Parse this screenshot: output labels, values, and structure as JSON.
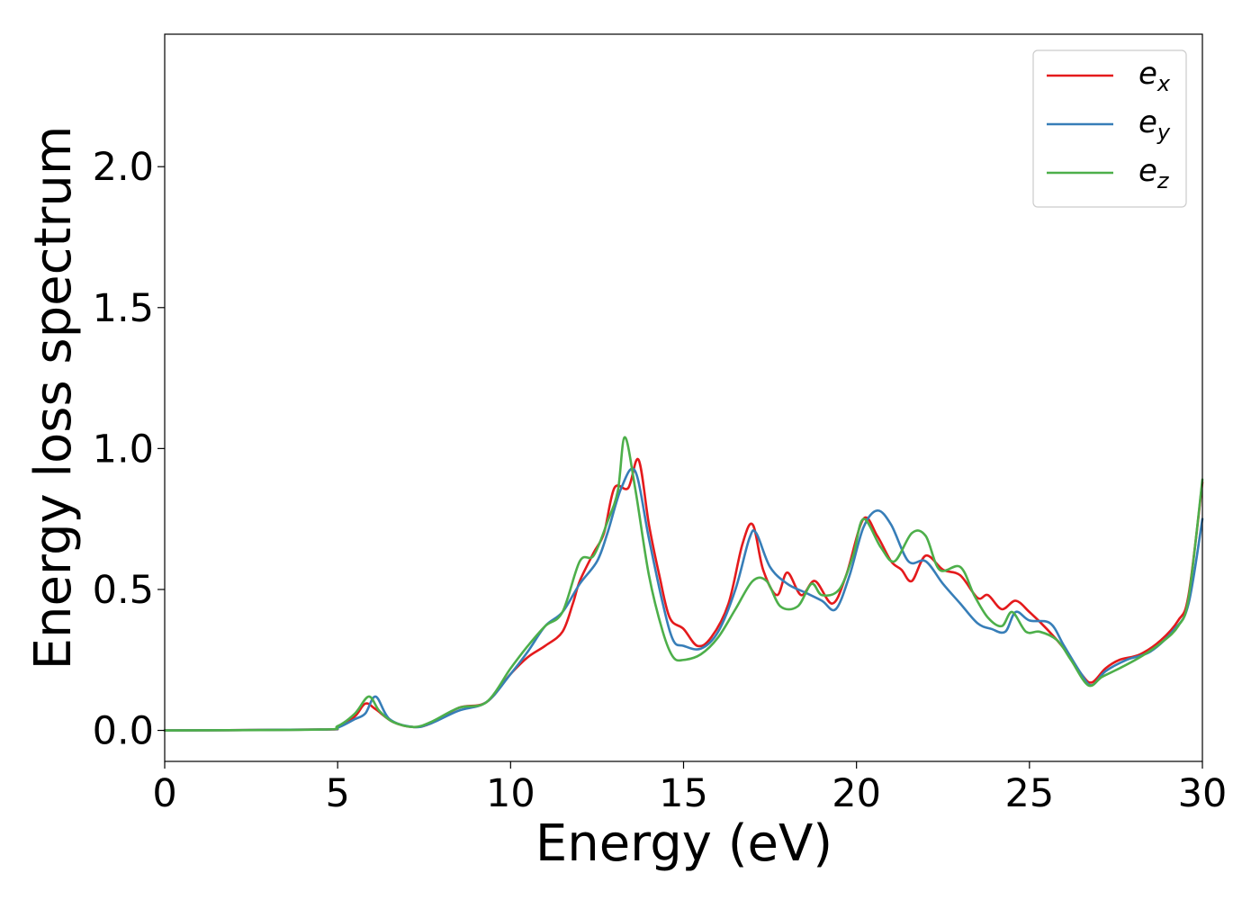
{
  "chart_data": {
    "type": "line",
    "xlabel": "Energy (eV)",
    "ylabel": "Energy loss spectrum",
    "xlim": [
      0,
      30
    ],
    "ylim": [
      -0.11,
      2.47
    ],
    "x_ticks": [
      "0",
      "5",
      "10",
      "15",
      "20",
      "25",
      "30"
    ],
    "y_ticks": [
      "0.0",
      "0.5",
      "1.0",
      "1.5",
      "2.0"
    ],
    "grid": false,
    "legend_position": "top-right",
    "series": [
      {
        "name": "e_x",
        "legend_main": "e",
        "legend_sub": "x",
        "color": "#e41a1c",
        "points": [
          [
            0,
            0
          ],
          [
            4.5,
            0.003
          ],
          [
            5.0,
            0.01
          ],
          [
            5.5,
            0.05
          ],
          [
            5.8,
            0.095
          ],
          [
            6.1,
            0.075
          ],
          [
            6.6,
            0.03
          ],
          [
            7.2,
            0.012
          ],
          [
            7.7,
            0.025
          ],
          [
            8.5,
            0.08
          ],
          [
            9.3,
            0.1
          ],
          [
            10.0,
            0.2
          ],
          [
            10.5,
            0.26
          ],
          [
            11.0,
            0.3
          ],
          [
            11.5,
            0.35
          ],
          [
            11.8,
            0.45
          ],
          [
            12.0,
            0.53
          ],
          [
            12.4,
            0.63
          ],
          [
            12.7,
            0.7
          ],
          [
            13.0,
            0.86
          ],
          [
            13.4,
            0.86
          ],
          [
            13.7,
            0.96
          ],
          [
            14.0,
            0.73
          ],
          [
            14.3,
            0.55
          ],
          [
            14.6,
            0.4
          ],
          [
            15.0,
            0.36
          ],
          [
            15.4,
            0.3
          ],
          [
            15.8,
            0.33
          ],
          [
            16.3,
            0.45
          ],
          [
            16.7,
            0.66
          ],
          [
            17.0,
            0.73
          ],
          [
            17.3,
            0.57
          ],
          [
            17.7,
            0.48
          ],
          [
            18.0,
            0.56
          ],
          [
            18.4,
            0.48
          ],
          [
            18.8,
            0.53
          ],
          [
            19.3,
            0.45
          ],
          [
            19.7,
            0.55
          ],
          [
            20.2,
            0.75
          ],
          [
            20.6,
            0.69
          ],
          [
            21.0,
            0.6
          ],
          [
            21.3,
            0.57
          ],
          [
            21.6,
            0.53
          ],
          [
            22.0,
            0.62
          ],
          [
            22.5,
            0.57
          ],
          [
            23.0,
            0.55
          ],
          [
            23.5,
            0.47
          ],
          [
            23.8,
            0.48
          ],
          [
            24.2,
            0.43
          ],
          [
            24.6,
            0.46
          ],
          [
            25.0,
            0.42
          ],
          [
            25.5,
            0.36
          ],
          [
            26.0,
            0.29
          ],
          [
            26.5,
            0.2
          ],
          [
            26.8,
            0.17
          ],
          [
            27.2,
            0.22
          ],
          [
            27.6,
            0.25
          ],
          [
            28.2,
            0.27
          ],
          [
            28.8,
            0.32
          ],
          [
            29.3,
            0.39
          ],
          [
            29.6,
            0.48
          ],
          [
            30.0,
            0.88
          ]
        ]
      },
      {
        "name": "e_y",
        "legend_main": "e",
        "legend_sub": "y",
        "color": "#377eb8",
        "points": [
          [
            0,
            0
          ],
          [
            4.5,
            0.003
          ],
          [
            5.0,
            0.01
          ],
          [
            5.5,
            0.04
          ],
          [
            5.8,
            0.06
          ],
          [
            6.1,
            0.12
          ],
          [
            6.5,
            0.04
          ],
          [
            7.2,
            0.012
          ],
          [
            7.7,
            0.025
          ],
          [
            8.5,
            0.07
          ],
          [
            9.3,
            0.1
          ],
          [
            10.0,
            0.2
          ],
          [
            10.5,
            0.28
          ],
          [
            11.0,
            0.37
          ],
          [
            11.5,
            0.42
          ],
          [
            12.0,
            0.52
          ],
          [
            12.5,
            0.6
          ],
          [
            12.8,
            0.7
          ],
          [
            13.2,
            0.86
          ],
          [
            13.6,
            0.92
          ],
          [
            14.0,
            0.68
          ],
          [
            14.4,
            0.45
          ],
          [
            14.7,
            0.32
          ],
          [
            15.0,
            0.3
          ],
          [
            15.5,
            0.29
          ],
          [
            16.0,
            0.35
          ],
          [
            16.5,
            0.5
          ],
          [
            16.9,
            0.68
          ],
          [
            17.1,
            0.7
          ],
          [
            17.5,
            0.58
          ],
          [
            18.0,
            0.52
          ],
          [
            18.5,
            0.49
          ],
          [
            19.0,
            0.46
          ],
          [
            19.4,
            0.43
          ],
          [
            19.8,
            0.55
          ],
          [
            20.2,
            0.72
          ],
          [
            20.6,
            0.78
          ],
          [
            21.0,
            0.73
          ],
          [
            21.5,
            0.6
          ],
          [
            22.0,
            0.6
          ],
          [
            22.5,
            0.52
          ],
          [
            23.0,
            0.45
          ],
          [
            23.5,
            0.38
          ],
          [
            23.9,
            0.36
          ],
          [
            24.3,
            0.35
          ],
          [
            24.6,
            0.42
          ],
          [
            25.0,
            0.39
          ],
          [
            25.6,
            0.38
          ],
          [
            26.0,
            0.3
          ],
          [
            26.5,
            0.2
          ],
          [
            26.8,
            0.16
          ],
          [
            27.2,
            0.21
          ],
          [
            27.8,
            0.25
          ],
          [
            28.5,
            0.28
          ],
          [
            29.2,
            0.36
          ],
          [
            29.6,
            0.45
          ],
          [
            30.0,
            0.75
          ]
        ]
      },
      {
        "name": "e_z",
        "legend_main": "e",
        "legend_sub": "z",
        "color": "#4daf4a",
        "points": [
          [
            0,
            0
          ],
          [
            4.5,
            0.003
          ],
          [
            5.0,
            0.015
          ],
          [
            5.5,
            0.06
          ],
          [
            5.9,
            0.12
          ],
          [
            6.2,
            0.07
          ],
          [
            6.6,
            0.03
          ],
          [
            7.2,
            0.012
          ],
          [
            7.7,
            0.03
          ],
          [
            8.5,
            0.08
          ],
          [
            9.3,
            0.1
          ],
          [
            10.0,
            0.22
          ],
          [
            10.5,
            0.3
          ],
          [
            11.0,
            0.37
          ],
          [
            11.5,
            0.42
          ],
          [
            12.0,
            0.6
          ],
          [
            12.4,
            0.62
          ],
          [
            12.8,
            0.74
          ],
          [
            13.1,
            0.85
          ],
          [
            13.3,
            1.04
          ],
          [
            13.6,
            0.86
          ],
          [
            14.0,
            0.55
          ],
          [
            14.4,
            0.35
          ],
          [
            14.7,
            0.26
          ],
          [
            15.0,
            0.25
          ],
          [
            15.5,
            0.27
          ],
          [
            16.0,
            0.33
          ],
          [
            16.5,
            0.43
          ],
          [
            17.0,
            0.53
          ],
          [
            17.4,
            0.53
          ],
          [
            17.8,
            0.44
          ],
          [
            18.3,
            0.44
          ],
          [
            18.7,
            0.52
          ],
          [
            19.0,
            0.48
          ],
          [
            19.5,
            0.5
          ],
          [
            19.9,
            0.62
          ],
          [
            20.2,
            0.75
          ],
          [
            20.7,
            0.65
          ],
          [
            21.1,
            0.6
          ],
          [
            21.6,
            0.7
          ],
          [
            22.0,
            0.69
          ],
          [
            22.4,
            0.57
          ],
          [
            23.0,
            0.58
          ],
          [
            23.4,
            0.48
          ],
          [
            23.8,
            0.4
          ],
          [
            24.2,
            0.37
          ],
          [
            24.5,
            0.42
          ],
          [
            24.9,
            0.35
          ],
          [
            25.3,
            0.35
          ],
          [
            25.8,
            0.32
          ],
          [
            26.2,
            0.25
          ],
          [
            26.7,
            0.16
          ],
          [
            27.1,
            0.19
          ],
          [
            27.6,
            0.22
          ],
          [
            28.2,
            0.26
          ],
          [
            28.8,
            0.31
          ],
          [
            29.3,
            0.37
          ],
          [
            29.6,
            0.47
          ],
          [
            30.0,
            0.89
          ]
        ]
      }
    ]
  }
}
